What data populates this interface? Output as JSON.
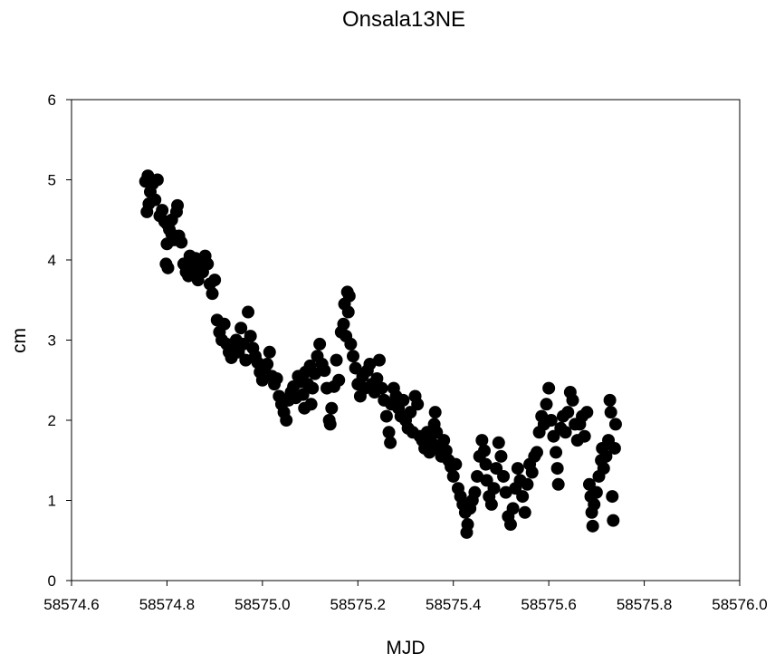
{
  "chart_data": {
    "type": "scatter",
    "title": "Onsala13NE",
    "xlabel": "MJD",
    "ylabel": "cm",
    "xlim": [
      58574.6,
      58576.0
    ],
    "ylim": [
      0,
      6
    ],
    "xticks": [
      "58574.6",
      "58574.8",
      "58575.0",
      "58575.2",
      "58575.4",
      "58575.6",
      "58575.8",
      "58576.0"
    ],
    "yticks": [
      "0",
      "1",
      "2",
      "3",
      "4",
      "5",
      "6"
    ],
    "grid": false,
    "marker_color": "#000000",
    "series": [
      {
        "points": [
          [
            58574.755,
            4.98
          ],
          [
            58574.76,
            5.05
          ],
          [
            58574.765,
            4.85
          ],
          [
            58574.77,
            4.95
          ],
          [
            58574.775,
            4.75
          ],
          [
            58574.758,
            4.6
          ],
          [
            58574.762,
            4.7
          ],
          [
            58574.78,
            5.0
          ],
          [
            58574.785,
            4.55
          ],
          [
            58574.79,
            4.62
          ],
          [
            58574.795,
            4.48
          ],
          [
            58574.8,
            4.45
          ],
          [
            58574.805,
            4.38
          ],
          [
            58574.81,
            4.5
          ],
          [
            58574.815,
            4.25
          ],
          [
            58574.82,
            4.6
          ],
          [
            58574.822,
            4.68
          ],
          [
            58574.825,
            4.3
          ],
          [
            58574.8,
            4.2
          ],
          [
            58574.798,
            3.95
          ],
          [
            58574.802,
            3.9
          ],
          [
            58574.81,
            4.32
          ],
          [
            58574.83,
            4.22
          ],
          [
            58574.835,
            3.95
          ],
          [
            58574.84,
            3.85
          ],
          [
            58574.845,
            3.8
          ],
          [
            58574.85,
            3.92
          ],
          [
            58574.855,
            3.88
          ],
          [
            58574.86,
            4.02
          ],
          [
            58574.865,
            3.75
          ],
          [
            58574.87,
            3.98
          ],
          [
            58574.875,
            3.85
          ],
          [
            58574.88,
            4.05
          ],
          [
            58574.885,
            3.95
          ],
          [
            58574.89,
            3.7
          ],
          [
            58574.895,
            3.58
          ],
          [
            58574.9,
            3.75
          ],
          [
            58574.848,
            4.05
          ],
          [
            58574.872,
            3.92
          ],
          [
            58574.905,
            3.25
          ],
          [
            58574.91,
            3.1
          ],
          [
            58574.915,
            3.0
          ],
          [
            58574.92,
            3.2
          ],
          [
            58574.925,
            2.95
          ],
          [
            58574.93,
            2.85
          ],
          [
            58574.935,
            2.78
          ],
          [
            58574.94,
            2.9
          ],
          [
            58574.945,
            3.0
          ],
          [
            58574.95,
            2.85
          ],
          [
            58574.955,
            3.15
          ],
          [
            58574.96,
            2.95
          ],
          [
            58574.965,
            2.75
          ],
          [
            58574.97,
            3.35
          ],
          [
            58574.975,
            3.05
          ],
          [
            58574.98,
            2.9
          ],
          [
            58574.985,
            2.8
          ],
          [
            58574.99,
            2.72
          ],
          [
            58574.995,
            2.6
          ],
          [
            58575.0,
            2.5
          ],
          [
            58575.005,
            2.65
          ],
          [
            58575.01,
            2.7
          ],
          [
            58575.015,
            2.85
          ],
          [
            58575.02,
            2.55
          ],
          [
            58575.025,
            2.45
          ],
          [
            58575.03,
            2.52
          ],
          [
            58575.035,
            2.3
          ],
          [
            58575.04,
            2.2
          ],
          [
            58575.045,
            2.1
          ],
          [
            58575.05,
            2.0
          ],
          [
            58575.055,
            2.25
          ],
          [
            58575.06,
            2.35
          ],
          [
            58575.065,
            2.42
          ],
          [
            58575.07,
            2.28
          ],
          [
            58575.075,
            2.55
          ],
          [
            58575.08,
            2.48
          ],
          [
            58575.085,
            2.32
          ],
          [
            58575.09,
            2.6
          ],
          [
            58575.095,
            2.45
          ],
          [
            58575.1,
            2.68
          ],
          [
            58575.105,
            2.4
          ],
          [
            58575.11,
            2.58
          ],
          [
            58575.115,
            2.8
          ],
          [
            58575.12,
            2.95
          ],
          [
            58575.125,
            2.7
          ],
          [
            58575.13,
            2.62
          ],
          [
            58575.135,
            2.4
          ],
          [
            58575.14,
            2.0
          ],
          [
            58575.142,
            1.95
          ],
          [
            58575.145,
            2.15
          ],
          [
            58575.15,
            2.42
          ],
          [
            58575.155,
            2.75
          ],
          [
            58575.16,
            2.5
          ],
          [
            58575.088,
            2.15
          ],
          [
            58575.102,
            2.2
          ],
          [
            58575.165,
            3.1
          ],
          [
            58575.17,
            3.2
          ],
          [
            58575.175,
            3.05
          ],
          [
            58575.172,
            3.45
          ],
          [
            58575.178,
            3.6
          ],
          [
            58575.182,
            3.55
          ],
          [
            58575.18,
            3.35
          ],
          [
            58575.185,
            2.95
          ],
          [
            58575.19,
            2.8
          ],
          [
            58575.195,
            2.65
          ],
          [
            58575.2,
            2.45
          ],
          [
            58575.205,
            2.3
          ],
          [
            58575.21,
            2.55
          ],
          [
            58575.215,
            2.4
          ],
          [
            58575.22,
            2.62
          ],
          [
            58575.225,
            2.7
          ],
          [
            58575.23,
            2.45
          ],
          [
            58575.235,
            2.35
          ],
          [
            58575.24,
            2.52
          ],
          [
            58575.245,
            2.75
          ],
          [
            58575.25,
            2.4
          ],
          [
            58575.255,
            2.25
          ],
          [
            58575.26,
            2.05
          ],
          [
            58575.265,
            1.85
          ],
          [
            58575.268,
            1.72
          ],
          [
            58575.27,
            2.2
          ],
          [
            58575.275,
            2.4
          ],
          [
            58575.28,
            2.3
          ],
          [
            58575.285,
            2.15
          ],
          [
            58575.29,
            2.05
          ],
          [
            58575.295,
            2.25
          ],
          [
            58575.3,
            2.0
          ],
          [
            58575.305,
            1.9
          ],
          [
            58575.31,
            2.1
          ],
          [
            58575.315,
            1.85
          ],
          [
            58575.32,
            2.3
          ],
          [
            58575.325,
            2.2
          ],
          [
            58575.33,
            1.8
          ],
          [
            58575.335,
            1.75
          ],
          [
            58575.34,
            1.65
          ],
          [
            58575.345,
            1.85
          ],
          [
            58575.35,
            1.6
          ],
          [
            58575.355,
            1.72
          ],
          [
            58575.36,
            1.95
          ],
          [
            58575.362,
            2.1
          ],
          [
            58575.365,
            1.85
          ],
          [
            58575.37,
            1.65
          ],
          [
            58575.375,
            1.55
          ],
          [
            58575.38,
            1.75
          ],
          [
            58575.385,
            1.62
          ],
          [
            58575.39,
            1.5
          ],
          [
            58575.395,
            1.42
          ],
          [
            58575.4,
            1.3
          ],
          [
            58575.405,
            1.45
          ],
          [
            58575.41,
            1.15
          ],
          [
            58575.415,
            1.05
          ],
          [
            58575.42,
            0.95
          ],
          [
            58575.425,
            0.85
          ],
          [
            58575.428,
            0.6
          ],
          [
            58575.43,
            0.7
          ],
          [
            58575.435,
            0.9
          ],
          [
            58575.44,
            1.0
          ],
          [
            58575.445,
            1.1
          ],
          [
            58575.45,
            1.3
          ],
          [
            58575.455,
            1.55
          ],
          [
            58575.46,
            1.75
          ],
          [
            58575.465,
            1.62
          ],
          [
            58575.468,
            1.45
          ],
          [
            58575.47,
            1.25
          ],
          [
            58575.475,
            1.05
          ],
          [
            58575.48,
            0.95
          ],
          [
            58575.485,
            1.15
          ],
          [
            58575.49,
            1.4
          ],
          [
            58575.495,
            1.72
          ],
          [
            58575.5,
            1.55
          ],
          [
            58575.505,
            1.3
          ],
          [
            58575.51,
            1.1
          ],
          [
            58575.515,
            0.8
          ],
          [
            58575.52,
            0.7
          ],
          [
            58575.525,
            0.9
          ],
          [
            58575.53,
            1.15
          ],
          [
            58575.535,
            1.4
          ],
          [
            58575.54,
            1.25
          ],
          [
            58575.545,
            1.05
          ],
          [
            58575.55,
            0.85
          ],
          [
            58575.555,
            1.2
          ],
          [
            58575.56,
            1.45
          ],
          [
            58575.565,
            1.35
          ],
          [
            58575.57,
            1.55
          ],
          [
            58575.575,
            1.6
          ],
          [
            58575.58,
            1.85
          ],
          [
            58575.585,
            2.05
          ],
          [
            58575.59,
            1.95
          ],
          [
            58575.595,
            2.2
          ],
          [
            58575.6,
            2.4
          ],
          [
            58575.605,
            2.0
          ],
          [
            58575.61,
            1.8
          ],
          [
            58575.615,
            1.6
          ],
          [
            58575.618,
            1.4
          ],
          [
            58575.62,
            1.2
          ],
          [
            58575.625,
            1.9
          ],
          [
            58575.63,
            2.05
          ],
          [
            58575.635,
            1.85
          ],
          [
            58575.64,
            2.1
          ],
          [
            58575.645,
            2.35
          ],
          [
            58575.65,
            2.25
          ],
          [
            58575.655,
            1.95
          ],
          [
            58575.66,
            1.75
          ],
          [
            58575.665,
            1.95
          ],
          [
            58575.67,
            2.05
          ],
          [
            58575.675,
            1.8
          ],
          [
            58575.68,
            2.1
          ],
          [
            58575.685,
            1.2
          ],
          [
            58575.688,
            1.05
          ],
          [
            58575.69,
            0.85
          ],
          [
            58575.692,
            0.68
          ],
          [
            58575.695,
            0.95
          ],
          [
            58575.7,
            1.1
          ],
          [
            58575.705,
            1.3
          ],
          [
            58575.71,
            1.5
          ],
          [
            58575.712,
            1.65
          ],
          [
            58575.715,
            1.4
          ],
          [
            58575.72,
            1.55
          ],
          [
            58575.725,
            1.75
          ],
          [
            58575.728,
            2.25
          ],
          [
            58575.73,
            2.1
          ],
          [
            58575.733,
            1.05
          ],
          [
            58575.735,
            0.75
          ],
          [
            58575.738,
            1.65
          ],
          [
            58575.74,
            1.95
          ]
        ]
      }
    ]
  }
}
